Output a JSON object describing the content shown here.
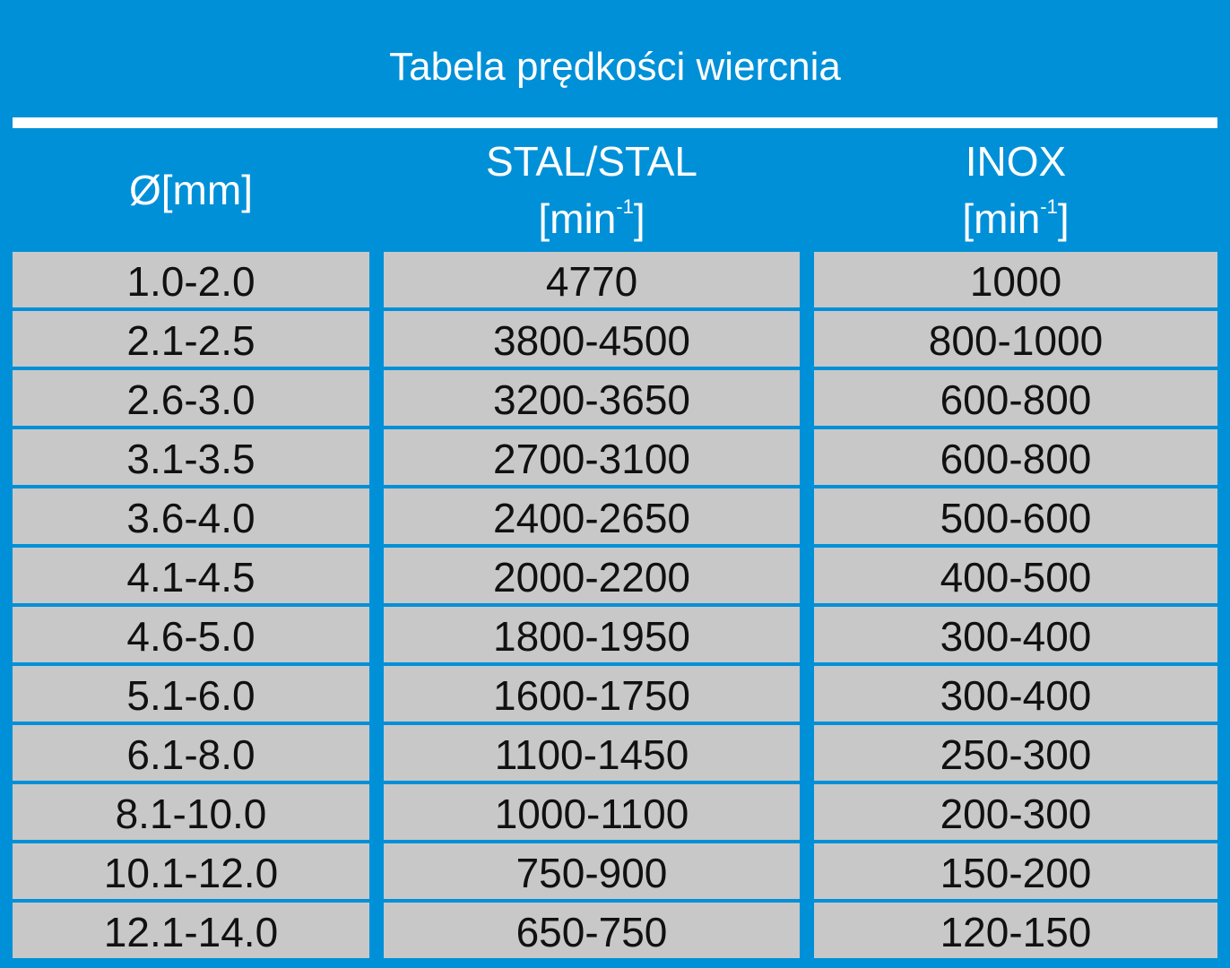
{
  "title": "Tabela prędkości wiercnia",
  "headers": {
    "diameter": "Ø[mm]",
    "steel": {
      "name": "STAL/STAL",
      "unit_base": "[min",
      "unit_exp": "-1",
      "unit_close": "]"
    },
    "inox": {
      "name": "INOX",
      "unit_base": "[min",
      "unit_exp": "-1",
      "unit_close": "]"
    }
  },
  "rows": [
    {
      "diameter": "1.0-2.0",
      "steel": "4770",
      "inox": "1000"
    },
    {
      "diameter": "2.1-2.5",
      "steel": "3800-4500",
      "inox": "800-1000"
    },
    {
      "diameter": "2.6-3.0",
      "steel": "3200-3650",
      "inox": "600-800"
    },
    {
      "diameter": "3.1-3.5",
      "steel": "2700-3100",
      "inox": "600-800"
    },
    {
      "diameter": "3.6-4.0",
      "steel": "2400-2650",
      "inox": "500-600"
    },
    {
      "diameter": "4.1-4.5",
      "steel": "2000-2200",
      "inox": "400-500"
    },
    {
      "diameter": "4.6-5.0",
      "steel": "1800-1950",
      "inox": "300-400"
    },
    {
      "diameter": "5.1-6.0",
      "steel": "1600-1750",
      "inox": "300-400"
    },
    {
      "diameter": "6.1-8.0",
      "steel": "1100-1450",
      "inox": "250-300"
    },
    {
      "diameter": "8.1-10.0",
      "steel": "1000-1100",
      "inox": "200-300"
    },
    {
      "diameter": "10.1-12.0",
      "steel": "750-900",
      "inox": "150-200"
    },
    {
      "diameter": "12.1-14.0",
      "steel": "650-750",
      "inox": "120-150"
    }
  ],
  "colors": {
    "background": "#0090d8",
    "cell": "#c8c8c8",
    "text": "#111111",
    "header_text": "#ffffff"
  }
}
